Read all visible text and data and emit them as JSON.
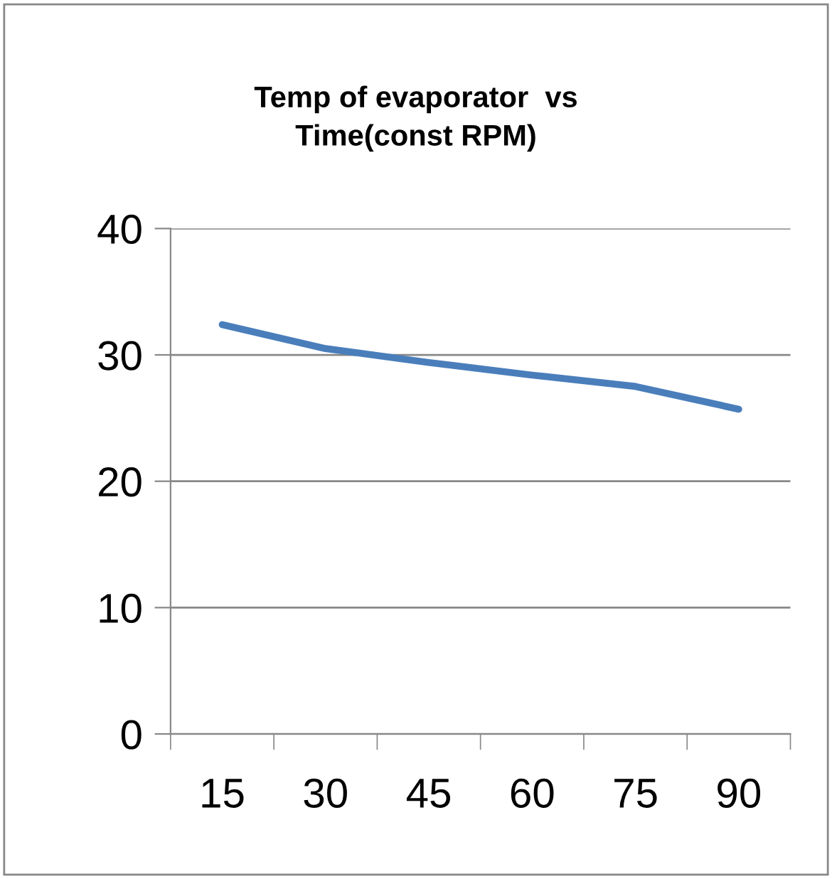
{
  "chart_data": {
    "type": "line",
    "title": "Temp of evaporator  vs\nTime(const RPM)",
    "categories": [
      "15",
      "30",
      "45",
      "60",
      "75",
      "90"
    ],
    "series": [
      {
        "color": "#4a7ebb",
        "values": [
          32.4,
          30.5,
          29.4,
          28.4,
          27.5,
          25.7
        ]
      }
    ],
    "ylim": [
      0,
      40
    ],
    "yticks": [
      0,
      10,
      20,
      30,
      40
    ],
    "grid": "y",
    "legend": false,
    "marker": "none",
    "line_style": "solid"
  }
}
